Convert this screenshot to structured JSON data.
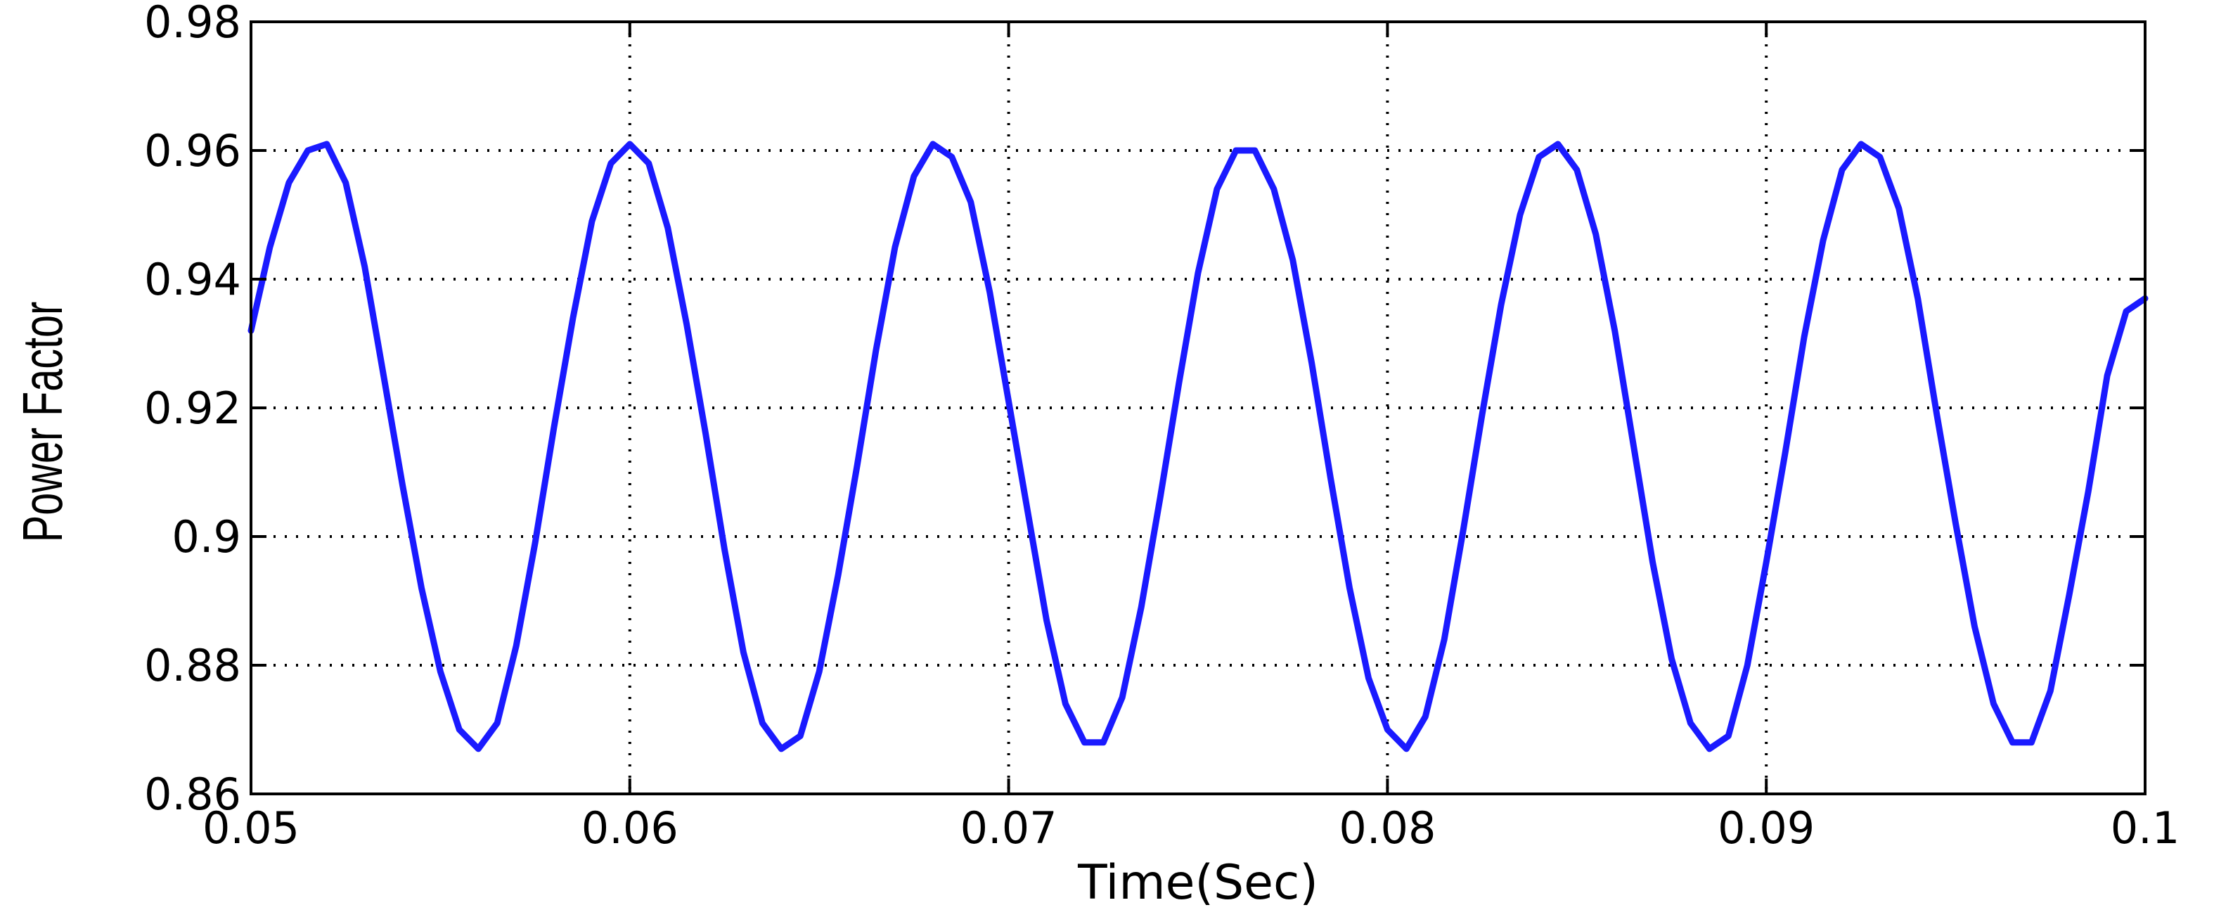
{
  "chart_data": {
    "type": "line",
    "title": "",
    "xlabel": "Time(Sec)",
    "ylabel": "Power Factor",
    "xlim": [
      0.05,
      0.1
    ],
    "ylim": [
      0.86,
      0.98
    ],
    "xticks": [
      0.05,
      0.06,
      0.07,
      0.08,
      0.09,
      0.1
    ],
    "xtick_labels": [
      "0.05",
      "0.06",
      "0.07",
      "0.08",
      "0.09",
      "0.1"
    ],
    "yticks": [
      0.86,
      0.88,
      0.9,
      0.92,
      0.94,
      0.96,
      0.98
    ],
    "ytick_labels": [
      "0.86",
      "0.88",
      "0.9",
      "0.92",
      "0.94",
      "0.96",
      "0.98"
    ],
    "grid": true,
    "grid_style": "dotted",
    "series": [
      {
        "color": "#1a1aff",
        "period": 0.00833,
        "x": [
          0.05,
          0.0505,
          0.051,
          0.0515,
          0.052,
          0.0525,
          0.053,
          0.0535,
          0.054,
          0.0545,
          0.055,
          0.0555,
          0.056,
          0.0565,
          0.057,
          0.0575,
          0.058,
          0.0585,
          0.059,
          0.0595,
          0.06,
          0.0605,
          0.061,
          0.0615,
          0.062,
          0.0625,
          0.063,
          0.0635,
          0.064,
          0.0645,
          0.065,
          0.0655,
          0.066,
          0.0665,
          0.067,
          0.0675,
          0.068,
          0.0685,
          0.069,
          0.0695,
          0.07,
          0.0705,
          0.071,
          0.0715,
          0.072,
          0.0725,
          0.073,
          0.0735,
          0.074,
          0.0745,
          0.075,
          0.0755,
          0.076,
          0.0765,
          0.077,
          0.0775,
          0.078,
          0.0785,
          0.079,
          0.0795,
          0.08,
          0.0805,
          0.081,
          0.0815,
          0.082,
          0.0825,
          0.083,
          0.0835,
          0.084,
          0.0845,
          0.085,
          0.0855,
          0.086,
          0.0865,
          0.087,
          0.0875,
          0.088,
          0.0885,
          0.089,
          0.0895,
          0.09,
          0.0905,
          0.091,
          0.0915,
          0.092,
          0.0925,
          0.093,
          0.0935,
          0.094,
          0.0945,
          0.095,
          0.0955,
          0.096,
          0.0965,
          0.097,
          0.0975,
          0.098,
          0.0985,
          0.099,
          0.0995,
          0.1
        ],
        "y": [
          0.932,
          0.945,
          0.955,
          0.96,
          0.961,
          0.955,
          0.942,
          0.925,
          0.908,
          0.892,
          0.879,
          0.87,
          0.867,
          0.871,
          0.883,
          0.899,
          0.917,
          0.934,
          0.949,
          0.958,
          0.961,
          0.958,
          0.948,
          0.933,
          0.916,
          0.898,
          0.882,
          0.871,
          0.867,
          0.869,
          0.879,
          0.894,
          0.911,
          0.929,
          0.945,
          0.956,
          0.961,
          0.959,
          0.952,
          0.938,
          0.921,
          0.904,
          0.887,
          0.874,
          0.868,
          0.868,
          0.875,
          0.889,
          0.906,
          0.924,
          0.941,
          0.954,
          0.96,
          0.96,
          0.954,
          0.943,
          0.927,
          0.909,
          0.892,
          0.878,
          0.87,
          0.867,
          0.872,
          0.884,
          0.901,
          0.919,
          0.936,
          0.95,
          0.959,
          0.961,
          0.957,
          0.947,
          0.932,
          0.914,
          0.896,
          0.881,
          0.871,
          0.867,
          0.869,
          0.88,
          0.896,
          0.913,
          0.931,
          0.946,
          0.957,
          0.961,
          0.959,
          0.951,
          0.937,
          0.919,
          0.902,
          0.886,
          0.874,
          0.868,
          0.868,
          0.876,
          0.891,
          0.907,
          0.925,
          0.935,
          0.937
        ]
      }
    ]
  }
}
